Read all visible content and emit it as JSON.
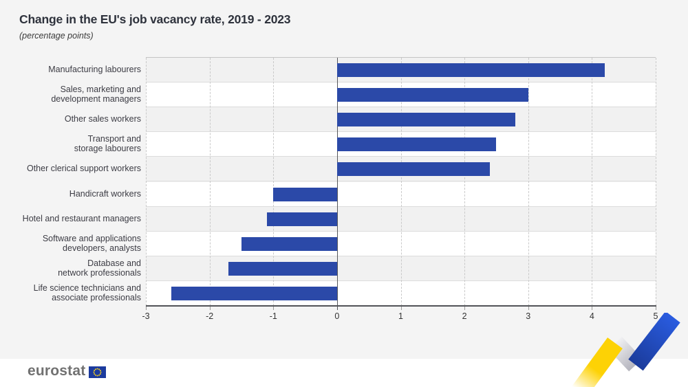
{
  "header": {
    "title": "Change in the EU's job vacancy rate, 2019 - 2023",
    "subtitle": "(percentage points)"
  },
  "chart_data": {
    "type": "bar",
    "orientation": "horizontal",
    "title": "Change in the EU's job vacancy rate, 2019 - 2023",
    "subtitle": "(percentage points)",
    "categories": [
      "Manufacturing labourers",
      "Sales, marketing and\ndevelopment managers",
      "Other sales workers",
      "Transport and\nstorage labourers",
      "Other clerical support workers",
      "Handicraft workers",
      "Hotel and restaurant managers",
      "Software and applications\ndevelopers, analysts",
      "Database and\nnetwork professionals",
      "Life science technicians and\nassociate professionals"
    ],
    "values": [
      4.2,
      3.0,
      2.8,
      2.5,
      2.4,
      -1.0,
      -1.1,
      -1.5,
      -1.7,
      -2.6
    ],
    "xlabel": "",
    "ylabel": "",
    "xlim": [
      -3,
      5
    ],
    "xticks": [
      -3,
      -2,
      -1,
      0,
      1,
      2,
      3,
      4,
      5
    ],
    "grid": "vertical dashed gridlines, alternating row bands",
    "legend": "none",
    "bar_color": "#2b49a8"
  },
  "colors": {
    "page_bg": "#f4f4f4",
    "band_gray": "#f1f1f1",
    "band_white": "#ffffff",
    "bar_blue": "#2b49a8",
    "zero_line": "#55565a",
    "title_text": "#2e323c",
    "ribbon_yellow": "#fdd205",
    "ribbon_blue": "#2253d4",
    "logo_flag_blue": "#1c3b9e",
    "logo_star_yellow": "#ffd617"
  },
  "footer": {
    "logo_text": "eurostat"
  }
}
